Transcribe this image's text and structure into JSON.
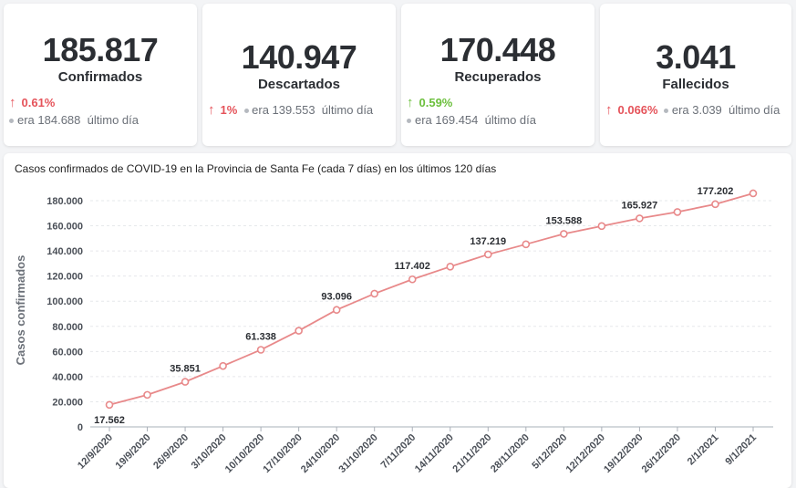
{
  "cards": [
    {
      "value": "185.817",
      "label": "Confirmados",
      "arrow": "↑",
      "pct": "0.61%",
      "pct_color": "#e5535a",
      "prev": "era 184.688",
      "prev_suffix": "último día"
    },
    {
      "value": "140.947",
      "label": "Descartados",
      "arrow": "↑",
      "pct": "1%",
      "pct_color": "#e5535a",
      "prev": "era 139.553",
      "prev_suffix": "último día"
    },
    {
      "value": "170.448",
      "label": "Recuperados",
      "arrow": "↑",
      "pct": "0.59%",
      "pct_color": "#6bbf3c",
      "prev": "era 169.454",
      "prev_suffix": "último día"
    },
    {
      "value": "3.041",
      "label": "Fallecidos",
      "arrow": "↑",
      "pct": "0.066%",
      "pct_color": "#e5535a",
      "prev": "era 3.039",
      "prev_suffix": "último día"
    }
  ],
  "chart_data": {
    "type": "line",
    "title": "Casos confirmados de COVID-19 en la Provincia de Santa Fe (cada 7 días) en los últimos 120 días",
    "xlabel": "",
    "ylabel": "Casos confirmados",
    "ylim": [
      0,
      180000
    ],
    "yticks": [
      0,
      20000,
      40000,
      60000,
      80000,
      100000,
      120000,
      140000,
      160000,
      180000
    ],
    "ytick_labels": [
      "0",
      "20.000",
      "40.000",
      "60.000",
      "80.000",
      "100.000",
      "120.000",
      "140.000",
      "160.000",
      "180.000"
    ],
    "categories": [
      "12/9/2020",
      "19/9/2020",
      "26/9/2020",
      "3/10/2020",
      "10/10/2020",
      "17/10/2020",
      "24/10/2020",
      "31/10/2020",
      "7/11/2020",
      "14/11/2020",
      "21/11/2020",
      "28/11/2020",
      "5/12/2020",
      "12/12/2020",
      "19/12/2020",
      "26/12/2020",
      "2/1/2021",
      "9/1/2021"
    ],
    "values": [
      17562,
      25500,
      35851,
      48500,
      61338,
      76500,
      93096,
      106000,
      117402,
      127500,
      137219,
      145300,
      153588,
      159800,
      165927,
      171000,
      177202,
      185817
    ],
    "data_labels": [
      "17.562",
      "",
      "35.851",
      "",
      "61.338",
      "",
      "93.096",
      "",
      "117.402",
      "",
      "137.219",
      "",
      "153.588",
      "",
      "165.927",
      "",
      "177.202",
      ""
    ],
    "line_color": "#e8898a",
    "grid": true
  }
}
